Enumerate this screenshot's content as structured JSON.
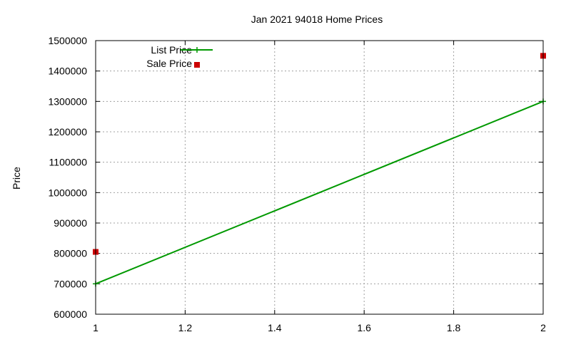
{
  "chart_data": {
    "type": "line",
    "title": "Jan 2021 94018 Home Prices",
    "xlabel": "",
    "ylabel": "Price",
    "xlim": [
      1,
      2
    ],
    "ylim": [
      600000,
      1500000
    ],
    "x_ticks": [
      "1",
      "1.2",
      "1.4",
      "1.6",
      "1.8",
      "2"
    ],
    "y_ticks": [
      "600000",
      "700000",
      "800000",
      "900000",
      "1000000",
      "1100000",
      "1200000",
      "1300000",
      "1400000",
      "1500000"
    ],
    "grid": true,
    "legend_position": "top-left",
    "series": [
      {
        "name": "List Price",
        "style": "line+plus",
        "color": "#009900",
        "points": [
          {
            "x": 1,
            "y": 700000
          },
          {
            "x": 2,
            "y": 1300000
          }
        ]
      },
      {
        "name": "Sale Price",
        "style": "square",
        "color": "#cc0000",
        "points": [
          {
            "x": 1,
            "y": 805000
          },
          {
            "x": 2,
            "y": 1450000
          }
        ]
      }
    ]
  }
}
